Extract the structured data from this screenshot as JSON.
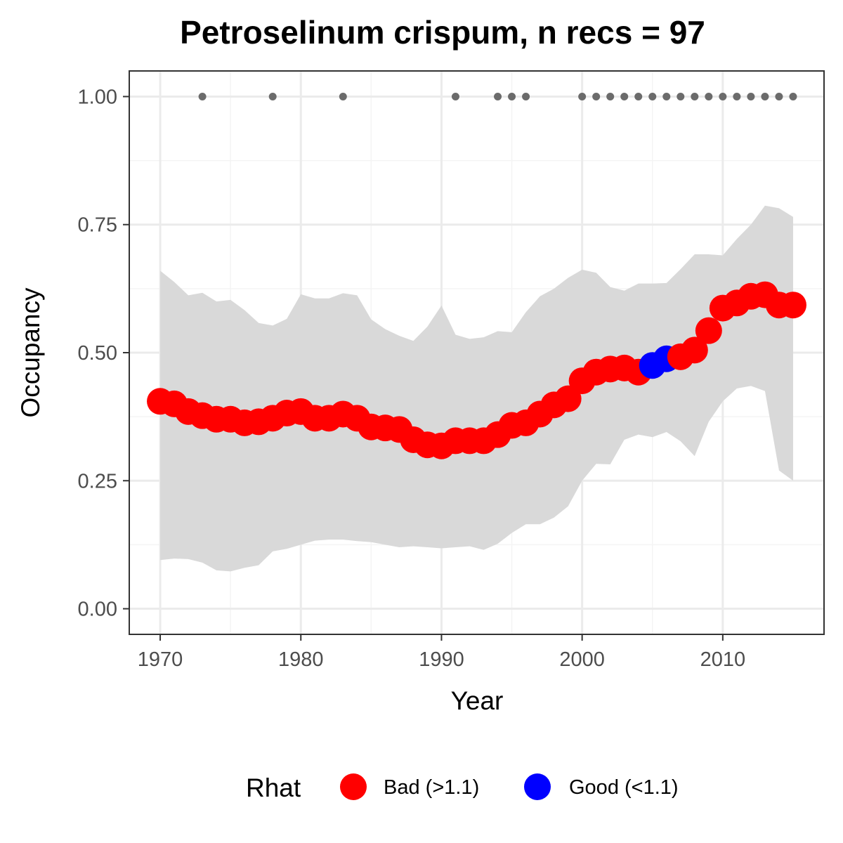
{
  "chart_data": {
    "type": "line",
    "title": "Petroselinum crispum, n recs = 97",
    "xlabel": "Year",
    "ylabel": "Occupancy",
    "xlim": [
      1967.8,
      2017.2
    ],
    "ylim": [
      -0.05,
      1.05
    ],
    "x_ticks": [
      1970,
      1980,
      1990,
      2000,
      2010
    ],
    "x_tick_labels": [
      "1970",
      "1980",
      "1990",
      "2000",
      "2010"
    ],
    "y_ticks": [
      0,
      0.25,
      0.5,
      0.75,
      1.0
    ],
    "y_tick_labels": [
      "0.00",
      "0.25",
      "0.50",
      "0.75",
      "1.00"
    ],
    "grid": true,
    "legend": {
      "title": "Rhat",
      "position": "bottom",
      "entries": [
        {
          "key": "bad",
          "label": "Bad (>1.1)",
          "color": "#FF0000"
        },
        {
          "key": "good",
          "label": "Good (<1.1)",
          "color": "#0000FF"
        }
      ]
    },
    "colors": {
      "band": "#D9D9D9",
      "record_points": "#6B6B6B",
      "panel_border": "#333333",
      "grid_major": "#EBEBEB"
    },
    "years": [
      1970,
      1971,
      1972,
      1973,
      1974,
      1975,
      1976,
      1977,
      1978,
      1979,
      1980,
      1981,
      1982,
      1983,
      1984,
      1985,
      1986,
      1987,
      1988,
      1989,
      1990,
      1991,
      1992,
      1993,
      1994,
      1995,
      1996,
      1997,
      1998,
      1999,
      2000,
      2001,
      2002,
      2003,
      2004,
      2005,
      2006,
      2007,
      2008,
      2009,
      2010,
      2011,
      2012,
      2013,
      2014,
      2015
    ],
    "occupancy": [
      0.405,
      0.4,
      0.385,
      0.377,
      0.37,
      0.37,
      0.363,
      0.365,
      0.372,
      0.382,
      0.385,
      0.372,
      0.372,
      0.38,
      0.372,
      0.355,
      0.353,
      0.35,
      0.33,
      0.32,
      0.318,
      0.328,
      0.328,
      0.328,
      0.34,
      0.358,
      0.363,
      0.38,
      0.398,
      0.41,
      0.445,
      0.462,
      0.468,
      0.47,
      0.462,
      0.475,
      0.488,
      0.492,
      0.505,
      0.543,
      0.587,
      0.597,
      0.61,
      0.613,
      0.593,
      0.593
    ],
    "rhat": [
      "bad",
      "bad",
      "bad",
      "bad",
      "bad",
      "bad",
      "bad",
      "bad",
      "bad",
      "bad",
      "bad",
      "bad",
      "bad",
      "bad",
      "bad",
      "bad",
      "bad",
      "bad",
      "bad",
      "bad",
      "bad",
      "bad",
      "bad",
      "bad",
      "bad",
      "bad",
      "bad",
      "bad",
      "bad",
      "bad",
      "bad",
      "bad",
      "bad",
      "bad",
      "bad",
      "good",
      "good",
      "bad",
      "bad",
      "bad",
      "bad",
      "bad",
      "bad",
      "bad",
      "bad",
      "bad"
    ],
    "lower_ci": [
      0.095,
      0.098,
      0.097,
      0.09,
      0.075,
      0.073,
      0.08,
      0.085,
      0.112,
      0.117,
      0.125,
      0.133,
      0.135,
      0.135,
      0.132,
      0.13,
      0.125,
      0.12,
      0.122,
      0.12,
      0.118,
      0.12,
      0.122,
      0.115,
      0.127,
      0.148,
      0.165,
      0.165,
      0.178,
      0.2,
      0.25,
      0.283,
      0.282,
      0.33,
      0.34,
      0.335,
      0.345,
      0.327,
      0.298,
      0.365,
      0.405,
      0.43,
      0.435,
      0.425,
      0.27,
      0.25
    ],
    "upper_ci": [
      0.66,
      0.638,
      0.612,
      0.617,
      0.6,
      0.603,
      0.583,
      0.558,
      0.553,
      0.566,
      0.614,
      0.606,
      0.606,
      0.616,
      0.612,
      0.565,
      0.546,
      0.533,
      0.523,
      0.551,
      0.592,
      0.535,
      0.527,
      0.53,
      0.542,
      0.54,
      0.579,
      0.61,
      0.625,
      0.646,
      0.662,
      0.656,
      0.628,
      0.621,
      0.635,
      0.635,
      0.636,
      0.663,
      0.692,
      0.692,
      0.69,
      0.722,
      0.75,
      0.787,
      0.782,
      0.765
    ],
    "record_years": [
      1973,
      1978,
      1983,
      1991,
      1994,
      1995,
      1996,
      2000,
      2001,
      2002,
      2003,
      2004,
      2005,
      2006,
      2007,
      2008,
      2009,
      2010,
      2011,
      2012,
      2013,
      2014,
      2015
    ],
    "record_value": 1.0
  }
}
